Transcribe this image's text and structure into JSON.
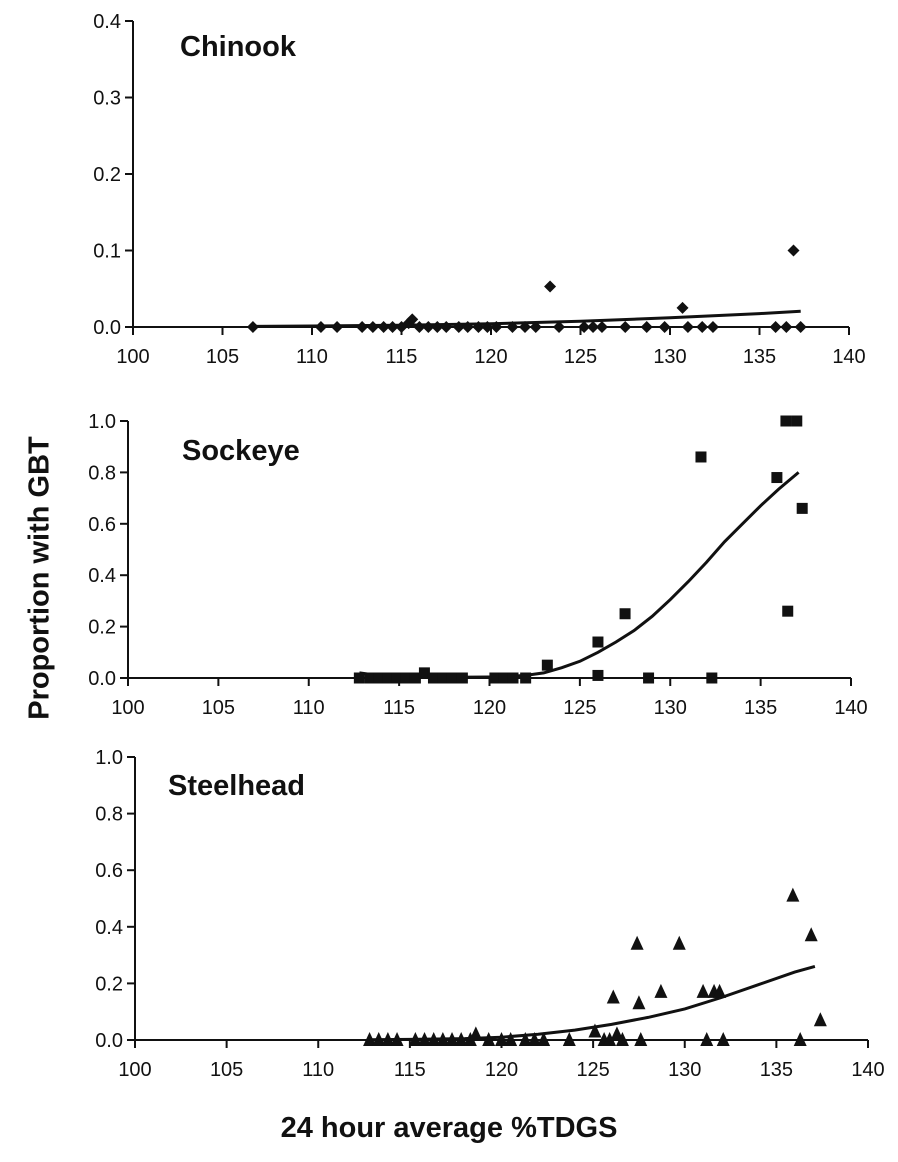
{
  "figure": {
    "ylabel": "Proportion with GBT",
    "xlabel": "24 hour average %TDGS"
  },
  "chart_data": [
    {
      "type": "scatter",
      "title": "Chinook",
      "marker": "diamond",
      "xlim": [
        100,
        140
      ],
      "ylim": [
        0,
        0.4
      ],
      "xticks": [
        100,
        105,
        110,
        115,
        120,
        125,
        130,
        135,
        140
      ],
      "yticks": [
        "0.0",
        "0.1",
        "0.2",
        "0.3",
        "0.4"
      ],
      "points": [
        [
          106.7,
          0.0
        ],
        [
          110.5,
          0.0
        ],
        [
          111.4,
          0.0
        ],
        [
          112.8,
          0.0
        ],
        [
          113.4,
          0.0
        ],
        [
          114.0,
          0.0
        ],
        [
          114.5,
          0.0
        ],
        [
          115.0,
          0.0
        ],
        [
          115.4,
          0.005
        ],
        [
          115.6,
          0.01
        ],
        [
          116.0,
          0.0
        ],
        [
          116.5,
          0.0
        ],
        [
          117.0,
          0.0
        ],
        [
          117.5,
          0.0
        ],
        [
          118.2,
          0.0
        ],
        [
          118.7,
          0.0
        ],
        [
          119.3,
          0.0
        ],
        [
          119.8,
          0.0
        ],
        [
          120.3,
          0.0
        ],
        [
          121.2,
          0.0
        ],
        [
          121.9,
          0.0
        ],
        [
          122.5,
          0.0
        ],
        [
          123.3,
          0.053
        ],
        [
          123.8,
          0.0
        ],
        [
          125.2,
          0.0
        ],
        [
          125.7,
          0.0
        ],
        [
          126.2,
          0.0
        ],
        [
          127.5,
          0.0
        ],
        [
          128.7,
          0.0
        ],
        [
          129.7,
          0.0
        ],
        [
          130.7,
          0.025
        ],
        [
          131.0,
          0.0
        ],
        [
          131.8,
          0.0
        ],
        [
          132.4,
          0.0
        ],
        [
          135.9,
          0.0
        ],
        [
          136.5,
          0.0
        ],
        [
          136.9,
          0.1
        ],
        [
          137.3,
          0.0
        ]
      ],
      "fit": [
        [
          106.7,
          0.0008
        ],
        [
          110,
          0.0013
        ],
        [
          115,
          0.0024
        ],
        [
          120,
          0.0043
        ],
        [
          125,
          0.0074
        ],
        [
          130,
          0.012
        ],
        [
          135,
          0.0175
        ],
        [
          137.3,
          0.0205
        ]
      ]
    },
    {
      "type": "scatter",
      "title": "Sockeye",
      "marker": "square",
      "xlim": [
        100,
        140
      ],
      "ylim": [
        0,
        1.0
      ],
      "xticks": [
        100,
        105,
        110,
        115,
        120,
        125,
        130,
        135,
        140
      ],
      "yticks": [
        "0.0",
        "0.2",
        "0.4",
        "0.6",
        "0.8",
        "1.0"
      ],
      "points": [
        [
          112.8,
          0.0
        ],
        [
          113.4,
          0.0
        ],
        [
          113.9,
          0.0
        ],
        [
          114.4,
          0.0
        ],
        [
          114.9,
          0.0
        ],
        [
          115.4,
          0.0
        ],
        [
          115.9,
          0.0
        ],
        [
          116.4,
          0.02
        ],
        [
          116.9,
          0.0
        ],
        [
          117.4,
          0.0
        ],
        [
          117.9,
          0.0
        ],
        [
          118.5,
          0.0
        ],
        [
          120.3,
          0.0
        ],
        [
          120.8,
          0.0
        ],
        [
          121.3,
          0.0
        ],
        [
          122.0,
          0.0
        ],
        [
          123.2,
          0.05
        ],
        [
          126.0,
          0.14
        ],
        [
          126.0,
          0.01
        ],
        [
          127.5,
          0.25
        ],
        [
          128.8,
          0.0
        ],
        [
          131.7,
          0.86
        ],
        [
          132.3,
          0.0
        ],
        [
          135.9,
          0.78
        ],
        [
          136.4,
          1.0
        ],
        [
          136.5,
          0.26
        ],
        [
          137.0,
          1.0
        ],
        [
          137.3,
          0.66
        ]
      ],
      "fit": [
        [
          112.8,
          0.02
        ],
        [
          114,
          0.008
        ],
        [
          116,
          0.004
        ],
        [
          118,
          0.003
        ],
        [
          120,
          0.004
        ],
        [
          121,
          0.006
        ],
        [
          122,
          0.01
        ],
        [
          123,
          0.02
        ],
        [
          124,
          0.04
        ],
        [
          125,
          0.065
        ],
        [
          126,
          0.1
        ],
        [
          127,
          0.14
        ],
        [
          128,
          0.185
        ],
        [
          129,
          0.24
        ],
        [
          130,
          0.305
        ],
        [
          131,
          0.375
        ],
        [
          132,
          0.45
        ],
        [
          133,
          0.53
        ],
        [
          134,
          0.6
        ],
        [
          135,
          0.67
        ],
        [
          136,
          0.735
        ],
        [
          137.1,
          0.8
        ]
      ]
    },
    {
      "type": "scatter",
      "title": "Steelhead",
      "marker": "triangle",
      "xlim": [
        100,
        140
      ],
      "ylim": [
        0,
        1.0
      ],
      "xticks": [
        100,
        105,
        110,
        115,
        120,
        125,
        130,
        135,
        140
      ],
      "yticks": [
        "0.0",
        "0.2",
        "0.4",
        "0.6",
        "0.8",
        "1.0"
      ],
      "points": [
        [
          112.8,
          0.0
        ],
        [
          113.3,
          0.0
        ],
        [
          113.8,
          0.0
        ],
        [
          114.3,
          0.0
        ],
        [
          115.3,
          0.0
        ],
        [
          115.8,
          0.0
        ],
        [
          116.3,
          0.0
        ],
        [
          116.8,
          0.0
        ],
        [
          117.3,
          0.0
        ],
        [
          117.8,
          0.0
        ],
        [
          118.3,
          0.0
        ],
        [
          118.6,
          0.02
        ],
        [
          119.3,
          0.0
        ],
        [
          120.0,
          0.0
        ],
        [
          120.5,
          0.0
        ],
        [
          121.3,
          0.0
        ],
        [
          121.8,
          0.0
        ],
        [
          122.3,
          0.0
        ],
        [
          123.7,
          0.0
        ],
        [
          125.1,
          0.03
        ],
        [
          125.6,
          0.0
        ],
        [
          125.9,
          0.0
        ],
        [
          126.1,
          0.15
        ],
        [
          126.3,
          0.02
        ],
        [
          126.6,
          0.0
        ],
        [
          127.4,
          0.34
        ],
        [
          127.5,
          0.13
        ],
        [
          127.6,
          0.0
        ],
        [
          128.7,
          0.17
        ],
        [
          129.7,
          0.34
        ],
        [
          131.0,
          0.17
        ],
        [
          131.2,
          0.0
        ],
        [
          131.6,
          0.17
        ],
        [
          131.9,
          0.17
        ],
        [
          132.1,
          0.0
        ],
        [
          135.9,
          0.51
        ],
        [
          136.3,
          0.0
        ],
        [
          136.9,
          0.37
        ],
        [
          137.4,
          0.07
        ]
      ],
      "fit": [
        [
          112.8,
          0.001
        ],
        [
          115,
          0.002
        ],
        [
          118,
          0.005
        ],
        [
          120,
          0.01
        ],
        [
          122,
          0.02
        ],
        [
          124,
          0.035
        ],
        [
          126,
          0.055
        ],
        [
          128,
          0.08
        ],
        [
          130,
          0.11
        ],
        [
          132,
          0.15
        ],
        [
          134,
          0.195
        ],
        [
          136,
          0.24
        ],
        [
          137.1,
          0.26
        ]
      ]
    }
  ]
}
